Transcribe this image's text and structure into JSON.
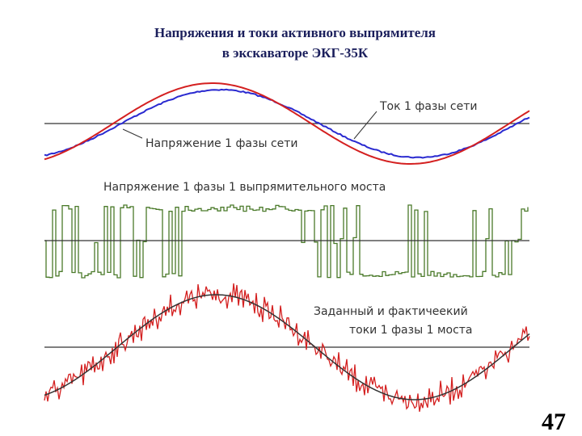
{
  "header": {
    "title_lines": [
      "Напряжения и токи активного выпрямителя",
      "в экскаваторе ЭКГ-35К"
    ]
  },
  "panels": [
    {
      "labels": [
        "Ток 1 фазы сети",
        "Напряжение 1 фазы сети"
      ]
    },
    {
      "labels": [
        "Напряжение 1 фазы 1 выпрямительного моста"
      ]
    },
    {
      "labels": [
        "Заданный и фактичеекий",
        "токи 1 фазы 1 моста"
      ]
    }
  ],
  "footer": {
    "page_number": "47"
  }
}
